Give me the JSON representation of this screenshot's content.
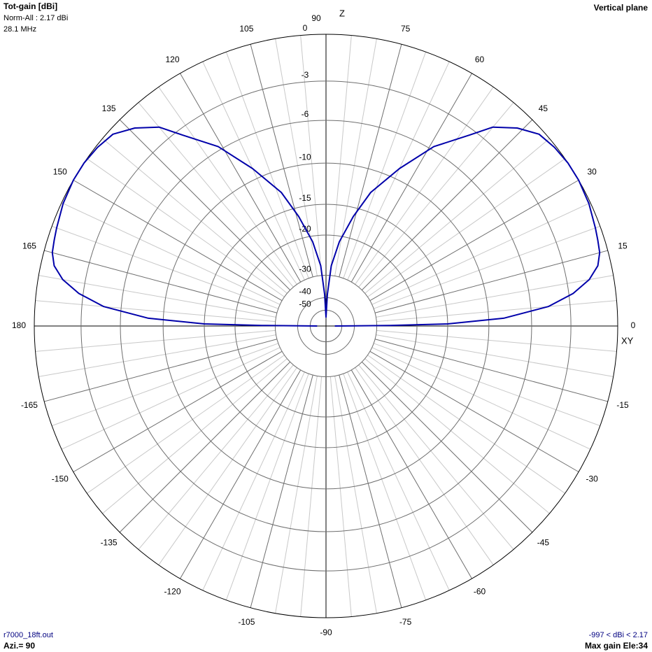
{
  "chart_data": {
    "type": "polar",
    "title": "Tot-gain [dBi]",
    "norm_label": "Norm-All : 2.17 dBi",
    "frequency_label": "28.1 MHz",
    "plane_label": "Vertical plane",
    "z_label": "Z",
    "xy_label": "XY",
    "file_label": "r7000_18ft.out",
    "azimuth_label": "Azi.= 90",
    "range_label": "-997 < dBi < 2.17",
    "max_gain_label": "Max gain Ele:34",
    "radial_scale": "arrl-log",
    "rmax": 0,
    "rticks": [
      0,
      -3,
      -6,
      -10,
      -15,
      -20,
      -30,
      -40,
      -50
    ],
    "angle_ticks": [
      0,
      15,
      30,
      45,
      60,
      75,
      90,
      105,
      120,
      135,
      150,
      165,
      180,
      -165,
      -150,
      -135,
      -120,
      -105,
      -90,
      -75,
      -60,
      -45,
      -30,
      -15
    ],
    "color": "#0000aa",
    "theta": [
      0,
      0.5,
      1,
      2.5,
      5,
      7.5,
      10,
      12.5,
      15,
      17.5,
      20,
      25,
      30,
      34,
      38,
      42,
      46,
      50,
      53,
      59,
      65,
      71.5,
      76,
      81,
      85,
      87.5,
      90,
      92.5,
      95,
      99,
      104,
      108.5,
      115,
      121,
      127,
      130,
      134,
      138,
      142,
      146,
      150,
      155,
      160,
      162.5,
      165,
      167.5,
      170,
      172.5,
      175,
      177.5,
      179,
      179.5,
      180
    ],
    "values": [
      -60,
      -26,
      -15,
      -8.5,
      -4.6,
      -2.7,
      -1.5,
      -0.8,
      -0.5,
      -0.4,
      -0.3,
      -0.1,
      0,
      0,
      -0.1,
      -0.3,
      -1,
      -2,
      -3.4,
      -5.7,
      -8.9,
      -12.5,
      -16.3,
      -21.1,
      -27,
      -38,
      -60,
      -38,
      -27,
      -21.1,
      -16.3,
      -12.5,
      -8.9,
      -5.7,
      -3.4,
      -2,
      -1,
      -0.3,
      -0.1,
      0,
      0,
      -0.1,
      -0.3,
      -0.4,
      -0.5,
      -0.8,
      -1.5,
      -2.7,
      -4.6,
      -8.5,
      -15,
      -26,
      -60
    ]
  }
}
